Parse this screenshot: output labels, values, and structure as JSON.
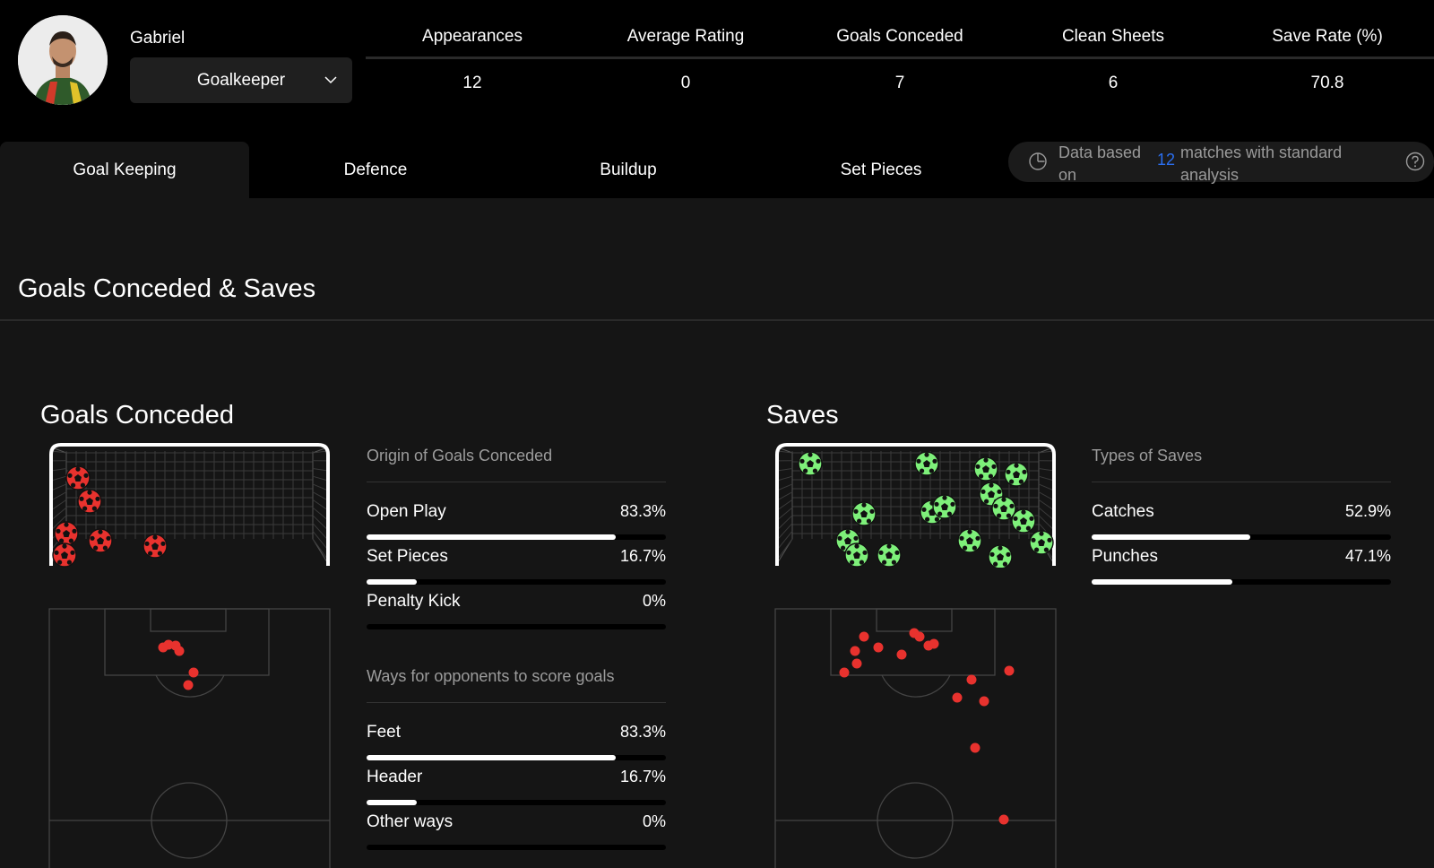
{
  "player": {
    "name": "Gabriel",
    "position": "Goalkeeper"
  },
  "stats": [
    {
      "label": "Appearances",
      "value": "12"
    },
    {
      "label": "Average Rating",
      "value": "0"
    },
    {
      "label": "Goals Conceded",
      "value": "7"
    },
    {
      "label": "Clean Sheets",
      "value": "6"
    },
    {
      "label": "Save Rate (%)",
      "value": "70.8"
    }
  ],
  "tabs": [
    {
      "label": "Goal Keeping",
      "active": true
    },
    {
      "label": "Defence",
      "active": false
    },
    {
      "label": "Buildup",
      "active": false
    },
    {
      "label": "Set Pieces",
      "active": false
    }
  ],
  "info": {
    "text_before": "Data based on",
    "matches": "12",
    "text_after": "matches with standard analysis"
  },
  "section_title": "Goals Conceded & Saves",
  "goals_conceded": {
    "title": "Goals Conceded",
    "origin": {
      "heading": "Origin of Goals Conceded",
      "rows": [
        {
          "label": "Open Play",
          "value": "83.3%",
          "fraction": 0.833
        },
        {
          "label": "Set Pieces",
          "value": "16.7%",
          "fraction": 0.167
        },
        {
          "label": "Penalty Kick",
          "value": "0%",
          "fraction": 0
        }
      ]
    },
    "ways": {
      "heading": "Ways for opponents to score goals",
      "rows": [
        {
          "label": "Feet",
          "value": "83.3%",
          "fraction": 0.833
        },
        {
          "label": "Header",
          "value": "16.7%",
          "fraction": 0.167
        },
        {
          "label": "Other ways",
          "value": "0%",
          "fraction": 0
        }
      ]
    }
  },
  "saves": {
    "title": "Saves",
    "types": {
      "heading": "Types of Saves",
      "rows": [
        {
          "label": "Catches",
          "value": "52.9%",
          "fraction": 0.529
        },
        {
          "label": "Punches",
          "value": "47.1%",
          "fraction": 0.471
        }
      ]
    }
  },
  "colors": {
    "conceded_ball": "#e8322e",
    "saved_ball": "#7ef07a",
    "shot_dot": "#e8322e",
    "link_blue": "#2b6ff0"
  }
}
